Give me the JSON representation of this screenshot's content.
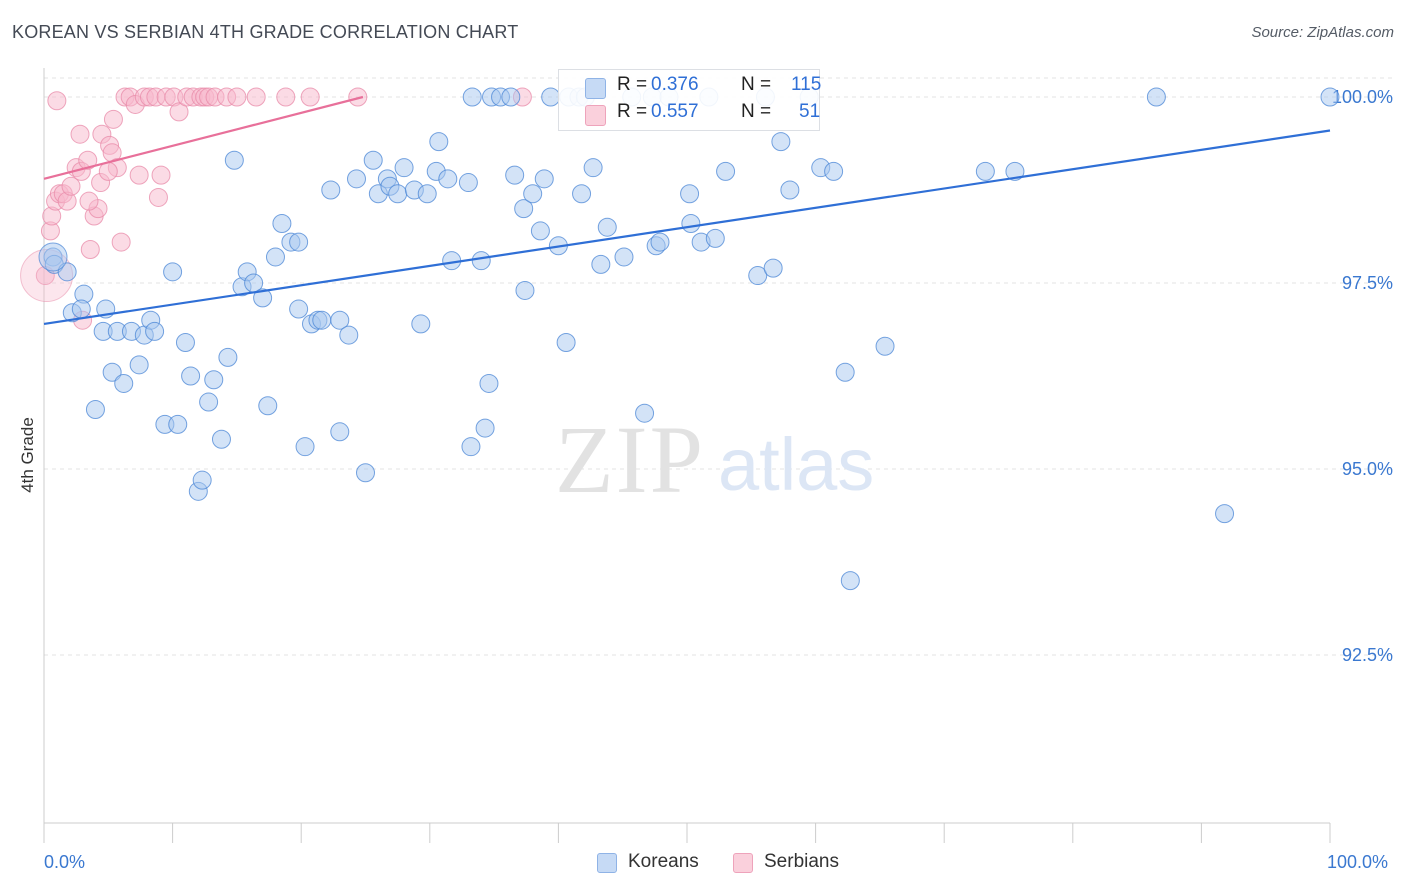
{
  "title": "KOREAN VS SERBIAN 4TH GRADE CORRELATION CHART",
  "source": "Source: ZipAtlas.com",
  "watermark": {
    "zip": "ZIP",
    "atlas": "atlas"
  },
  "legend": {
    "rows": [
      {
        "r_label": "R =",
        "r_value": "0.376",
        "n_label": "N =",
        "n_value": "115",
        "color": "#a8c8f0"
      },
      {
        "r_label": "R =",
        "r_value": "0.557",
        "n_label": "N =",
        "n_value": "51",
        "color": "#f7b8cb"
      }
    ]
  },
  "bottom_legend": [
    {
      "label": "Koreans",
      "color": "#a8c8f0"
    },
    {
      "label": "Serbians",
      "color": "#f7b8cb"
    }
  ],
  "chart_data": {
    "type": "scatter",
    "title": "KOREAN VS SERBIAN 4TH GRADE CORRELATION CHART",
    "xlabel": "",
    "ylabel": "4th Grade",
    "xlim": [
      0,
      100
    ],
    "ylim": [
      90.0,
      100.3
    ],
    "x_tick_labels": [
      "0.0%",
      "100.0%"
    ],
    "y_ticks": [
      92.5,
      95.0,
      97.5,
      100.0
    ],
    "y_tick_labels": [
      "92.5%",
      "95.0%",
      "97.5%",
      "100.0%"
    ],
    "grid": "horizontal dashed",
    "series": [
      {
        "name": "Koreans",
        "color": "#4a86d6",
        "fill": "#a8c8f0",
        "trend": {
          "x": [
            0,
            100
          ],
          "y": [
            96.95,
            99.55
          ]
        },
        "points": [
          [
            0.7,
            97.85
          ],
          [
            0.8,
            97.75
          ],
          [
            1.8,
            97.65
          ],
          [
            2.2,
            97.1
          ],
          [
            3.1,
            97.35
          ],
          [
            2.9,
            97.15
          ],
          [
            4.6,
            96.85
          ],
          [
            4.8,
            97.15
          ],
          [
            5.3,
            96.3
          ],
          [
            5.7,
            96.85
          ],
          [
            6.2,
            96.15
          ],
          [
            6.8,
            96.85
          ],
          [
            7.4,
            96.4
          ],
          [
            7.8,
            96.8
          ],
          [
            8.3,
            97.0
          ],
          [
            8.6,
            96.85
          ],
          [
            4.0,
            95.8
          ],
          [
            9.4,
            95.6
          ],
          [
            10.4,
            95.6
          ],
          [
            10.0,
            97.65
          ],
          [
            11.0,
            96.7
          ],
          [
            11.4,
            96.25
          ],
          [
            12.0,
            94.7
          ],
          [
            12.3,
            94.85
          ],
          [
            12.8,
            95.9
          ],
          [
            13.2,
            96.2
          ],
          [
            13.8,
            95.4
          ],
          [
            14.3,
            96.5
          ],
          [
            14.8,
            99.15
          ],
          [
            15.4,
            97.45
          ],
          [
            15.8,
            97.65
          ],
          [
            16.3,
            97.5
          ],
          [
            17.0,
            97.3
          ],
          [
            17.4,
            95.85
          ],
          [
            18.0,
            97.85
          ],
          [
            18.5,
            98.3
          ],
          [
            19.2,
            98.05
          ],
          [
            19.8,
            98.05
          ],
          [
            19.8,
            97.15
          ],
          [
            20.3,
            95.3
          ],
          [
            20.8,
            96.95
          ],
          [
            21.3,
            97.0
          ],
          [
            21.6,
            97.0
          ],
          [
            22.3,
            98.75
          ],
          [
            23.0,
            97.0
          ],
          [
            23.0,
            95.5
          ],
          [
            23.7,
            96.8
          ],
          [
            24.3,
            98.9
          ],
          [
            25.0,
            94.95
          ],
          [
            25.6,
            99.15
          ],
          [
            26.0,
            98.7
          ],
          [
            26.7,
            98.9
          ],
          [
            26.9,
            98.8
          ],
          [
            27.5,
            98.7
          ],
          [
            28.0,
            99.05
          ],
          [
            28.8,
            98.75
          ],
          [
            29.3,
            96.95
          ],
          [
            29.8,
            98.7
          ],
          [
            30.5,
            99.0
          ],
          [
            30.7,
            99.4
          ],
          [
            31.4,
            98.9
          ],
          [
            31.7,
            97.8
          ],
          [
            33.0,
            98.85
          ],
          [
            33.2,
            95.3
          ],
          [
            34.0,
            97.8
          ],
          [
            34.3,
            95.55
          ],
          [
            34.6,
            96.15
          ],
          [
            33.3,
            100.0
          ],
          [
            34.8,
            100.0
          ],
          [
            35.5,
            100.0
          ],
          [
            36.3,
            100.0
          ],
          [
            36.6,
            98.95
          ],
          [
            37.3,
            98.5
          ],
          [
            37.4,
            97.4
          ],
          [
            38.0,
            98.7
          ],
          [
            38.6,
            98.2
          ],
          [
            38.9,
            98.9
          ],
          [
            39.4,
            100.0
          ],
          [
            40.0,
            98.0
          ],
          [
            40.6,
            96.7
          ],
          [
            40.8,
            100.0
          ],
          [
            41.6,
            100.0
          ],
          [
            41.8,
            98.7
          ],
          [
            42.1,
            100.0
          ],
          [
            42.7,
            99.05
          ],
          [
            43.3,
            97.75
          ],
          [
            43.8,
            98.25
          ],
          [
            45.1,
            97.85
          ],
          [
            45.7,
            100.0
          ],
          [
            46.7,
            95.75
          ],
          [
            47.3,
            100.0
          ],
          [
            47.6,
            98.0
          ],
          [
            47.9,
            98.05
          ],
          [
            48.6,
            100.0
          ],
          [
            50.2,
            98.7
          ],
          [
            50.3,
            98.3
          ],
          [
            51.1,
            98.05
          ],
          [
            51.7,
            100.0
          ],
          [
            52.2,
            98.1
          ],
          [
            53.0,
            99.0
          ],
          [
            55.5,
            97.6
          ],
          [
            56.1,
            100.0
          ],
          [
            56.7,
            97.7
          ],
          [
            57.3,
            99.4
          ],
          [
            58.0,
            98.75
          ],
          [
            59.5,
            100.0
          ],
          [
            60.4,
            99.05
          ],
          [
            61.4,
            99.0
          ],
          [
            62.3,
            96.3
          ],
          [
            62.7,
            93.5
          ],
          [
            65.4,
            96.65
          ],
          [
            73.2,
            99.0
          ],
          [
            75.5,
            99.0
          ],
          [
            86.5,
            100.0
          ],
          [
            91.8,
            94.4
          ],
          [
            100.0,
            100.0
          ]
        ]
      },
      {
        "name": "Serbians",
        "color": "#e88aa8",
        "fill": "#f7b8cb",
        "trend": {
          "x": [
            0,
            24.8
          ],
          "y": [
            98.9,
            100.0
          ]
        },
        "points": [
          [
            0.1,
            97.6
          ],
          [
            0.5,
            98.2
          ],
          [
            0.6,
            98.4
          ],
          [
            0.9,
            98.6
          ],
          [
            1.2,
            98.7
          ],
          [
            1.5,
            98.7
          ],
          [
            1.8,
            98.6
          ],
          [
            2.1,
            98.8
          ],
          [
            2.5,
            99.05
          ],
          [
            2.9,
            99.0
          ],
          [
            3.0,
            97.0
          ],
          [
            3.4,
            99.15
          ],
          [
            3.6,
            97.95
          ],
          [
            3.9,
            98.4
          ],
          [
            4.2,
            98.5
          ],
          [
            4.4,
            98.85
          ],
          [
            4.5,
            99.5
          ],
          [
            5.1,
            99.35
          ],
          [
            5.3,
            99.25
          ],
          [
            5.4,
            99.7
          ],
          [
            6.0,
            98.05
          ],
          [
            5.7,
            99.05
          ],
          [
            6.3,
            100.0
          ],
          [
            6.7,
            100.0
          ],
          [
            7.1,
            99.9
          ],
          [
            7.4,
            98.95
          ],
          [
            7.8,
            100.0
          ],
          [
            8.2,
            100.0
          ],
          [
            8.7,
            100.0
          ],
          [
            8.9,
            98.65
          ],
          [
            9.1,
            98.95
          ],
          [
            9.5,
            100.0
          ],
          [
            10.1,
            100.0
          ],
          [
            10.5,
            99.8
          ],
          [
            11.1,
            100.0
          ],
          [
            11.6,
            100.0
          ],
          [
            12.2,
            100.0
          ],
          [
            12.5,
            100.0
          ],
          [
            12.8,
            100.0
          ],
          [
            13.3,
            100.0
          ],
          [
            14.2,
            100.0
          ],
          [
            15.0,
            100.0
          ],
          [
            16.5,
            100.0
          ],
          [
            18.8,
            100.0
          ],
          [
            20.7,
            100.0
          ],
          [
            24.4,
            100.0
          ],
          [
            2.8,
            99.5
          ],
          [
            3.5,
            98.6
          ],
          [
            37.2,
            100.0
          ],
          [
            1.0,
            99.95
          ],
          [
            5.0,
            99.0
          ]
        ]
      }
    ]
  }
}
